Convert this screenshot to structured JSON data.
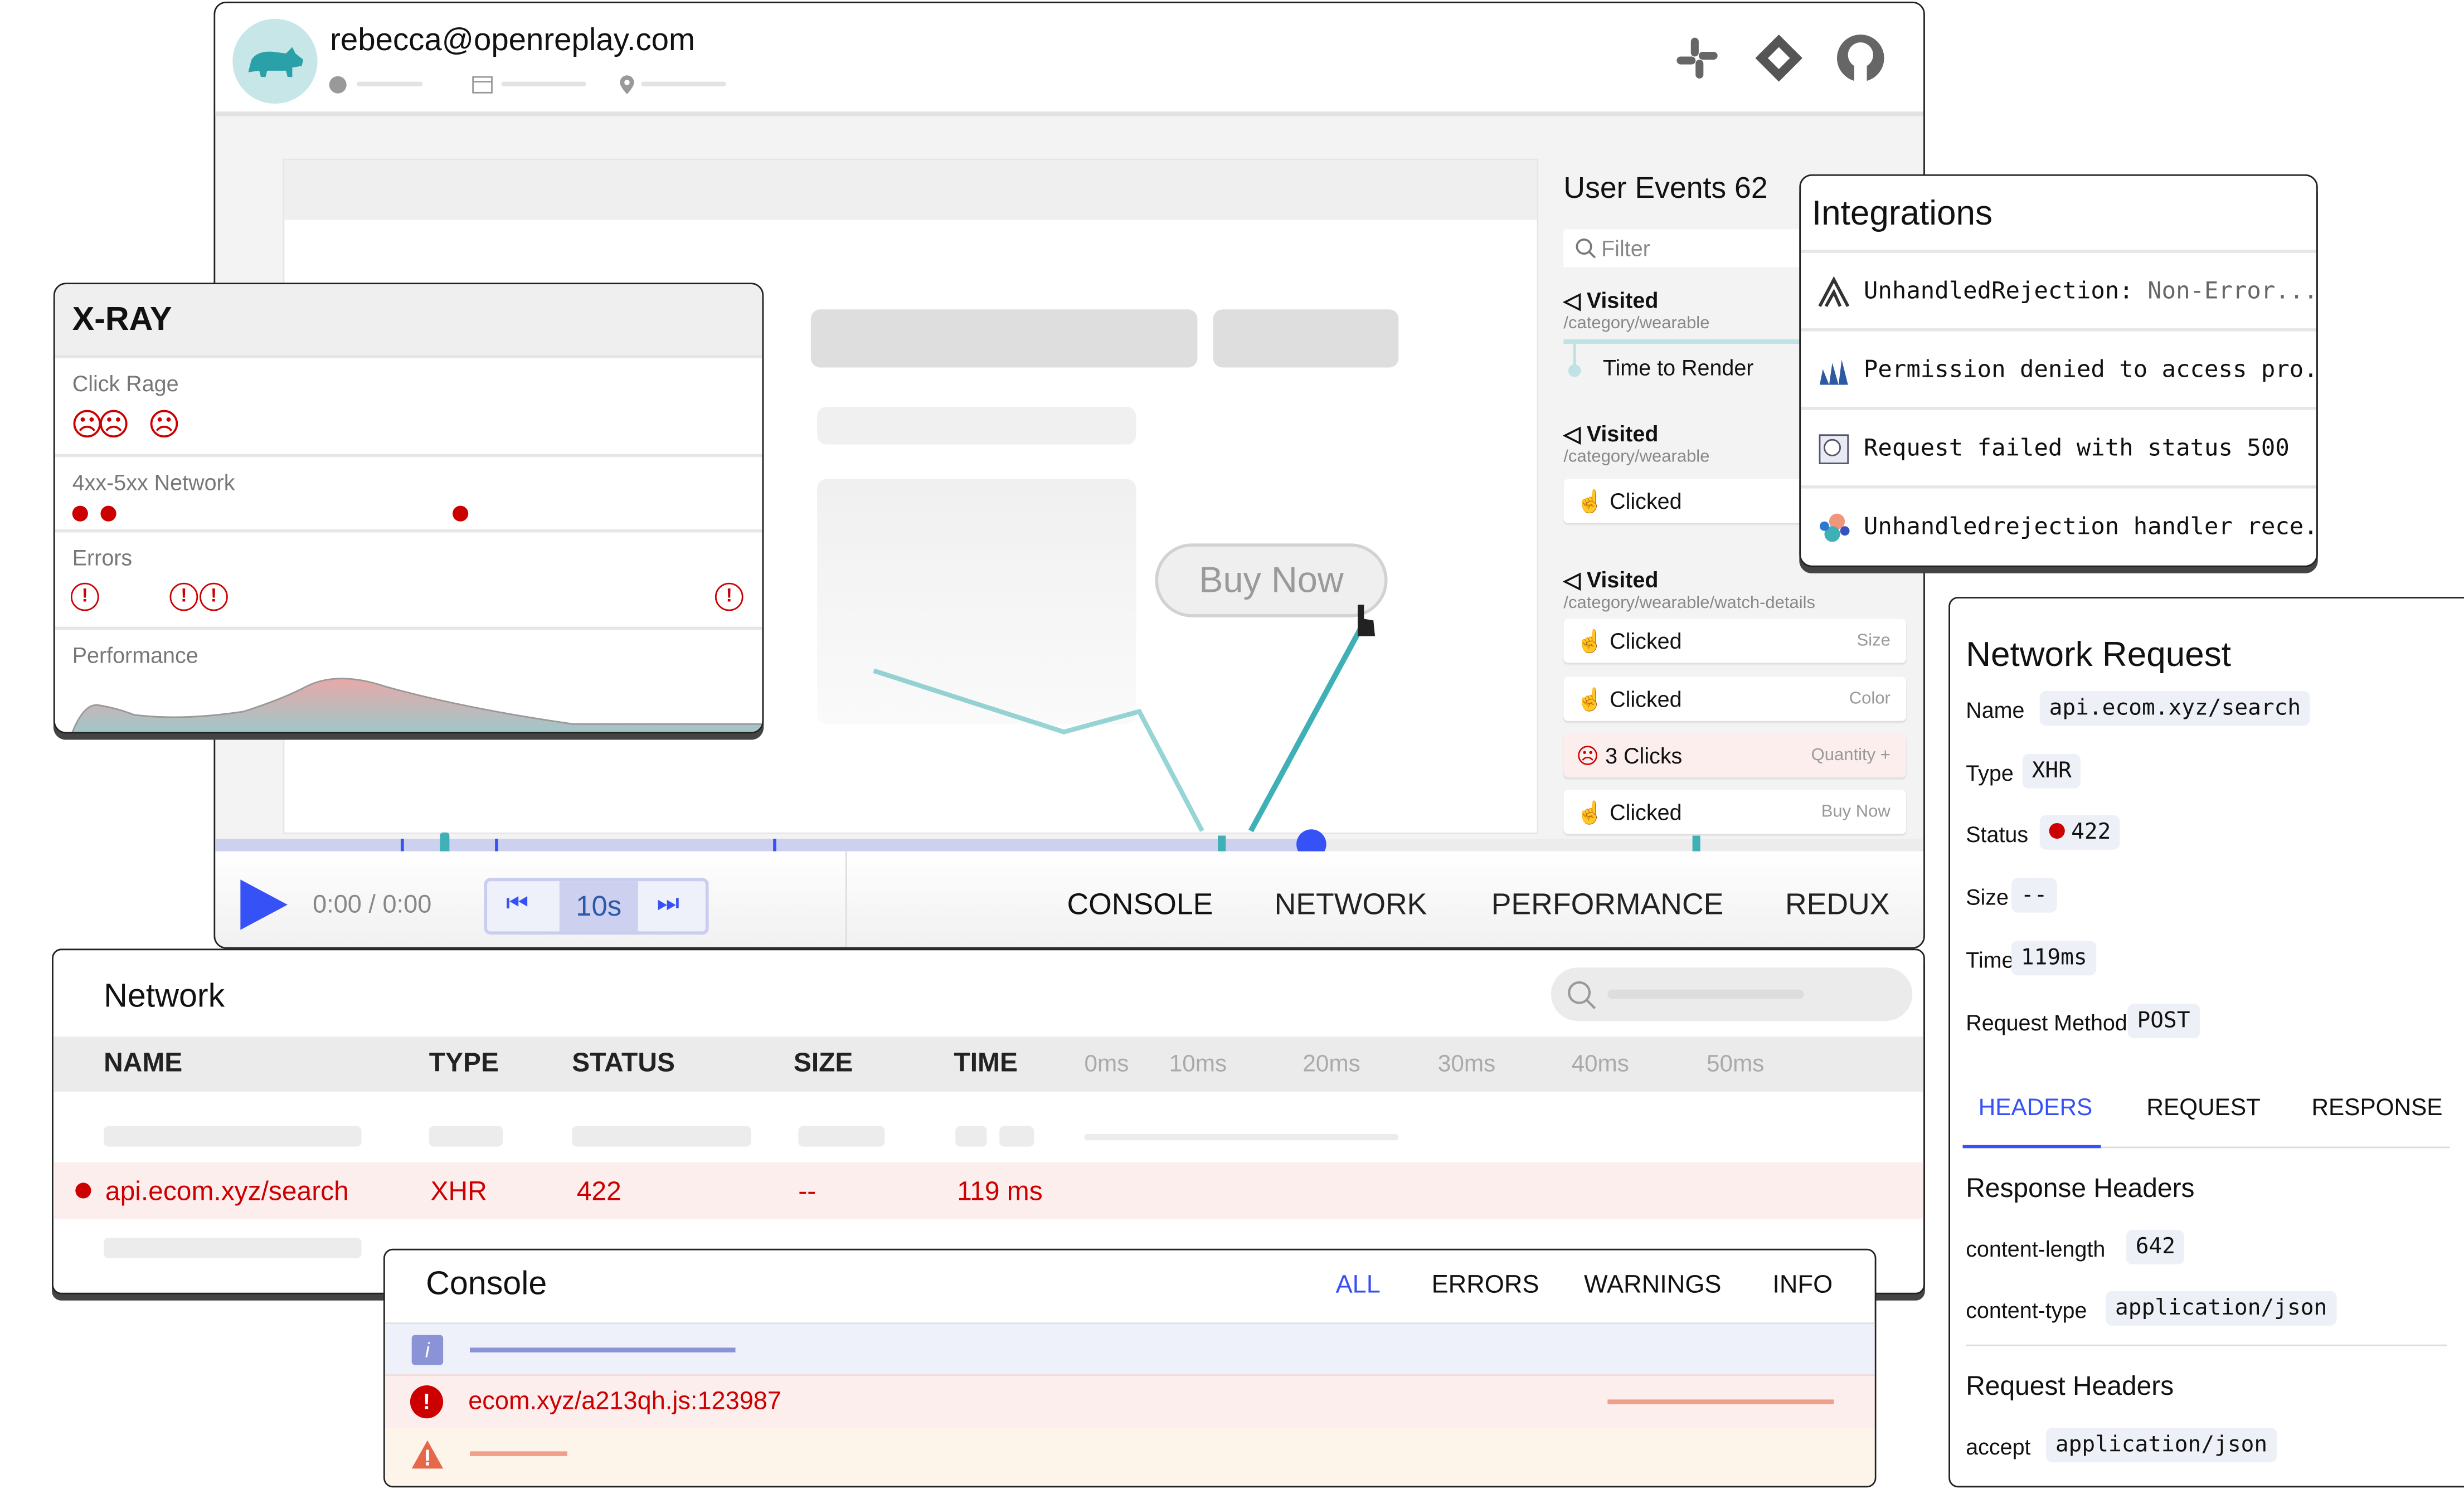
{
  "header": {
    "user_email": "rebecca@openreplay.com",
    "icons": [
      "clock-icon",
      "calendar-icon",
      "location-icon"
    ],
    "integrations_icons": [
      "slack-icon",
      "jira-icon",
      "github-icon"
    ]
  },
  "replay": {
    "buy_now_label": "Buy Now"
  },
  "user_events": {
    "title": "User Events 62",
    "filter_placeholder": "Filter",
    "groups": [
      {
        "type": "Visited",
        "path": "/category/wearable",
        "items": [
          {
            "label": "Time to Render",
            "detail": ""
          }
        ]
      },
      {
        "type": "Visited",
        "path": "/category/wearable",
        "items": [
          {
            "label": "Clicked",
            "detail": ""
          }
        ]
      },
      {
        "type": "Visited",
        "path": "/category/wearable/watch-details",
        "items": [
          {
            "label": "Clicked",
            "detail": "Size"
          },
          {
            "label": "Clicked",
            "detail": "Color"
          },
          {
            "label": "3 Clicks",
            "detail": "Quantity +",
            "rage": true
          },
          {
            "label": "Clicked",
            "detail": "Buy Now"
          }
        ]
      }
    ]
  },
  "player": {
    "time": "0:00 / 0:00",
    "skip_label": "10s",
    "progress_percent": 64,
    "tabs": [
      "CONSOLE",
      "NETWORK",
      "PERFORMANCE",
      "REDUX"
    ]
  },
  "xray": {
    "title": "X-RAY",
    "rows": [
      "Click Rage",
      "4xx-5xx Network",
      "Errors",
      "Performance"
    ]
  },
  "integrations": {
    "title": "Integrations",
    "items": [
      {
        "icon": "sentry-icon",
        "text": "UnhandledRejection:",
        "muted": "Non-Error..."
      },
      {
        "icon": "bugsnag-icon",
        "text": "Permission denied to access pro...",
        "muted": ""
      },
      {
        "icon": "datadog-icon",
        "text": "Request failed with status 500",
        "muted": ""
      },
      {
        "icon": "elastic-icon",
        "text": "Unhandledrejection handler rece..",
        "muted": ""
      }
    ]
  },
  "network_request": {
    "title": "Network Request",
    "fields": [
      {
        "label": "Name",
        "value": "api.ecom.xyz/search"
      },
      {
        "label": "Type",
        "value": "XHR"
      },
      {
        "label": "Status",
        "value": "422"
      },
      {
        "label": "Size",
        "value": "--"
      },
      {
        "label": "Time",
        "value": "119ms"
      },
      {
        "label": "Request Method",
        "value": "POST"
      }
    ],
    "tabs": [
      "HEADERS",
      "REQUEST",
      "RESPONSE"
    ],
    "active_tab": "HEADERS",
    "response_headers_title": "Response Headers",
    "response_headers": [
      {
        "label": "content-length",
        "value": "642"
      },
      {
        "label": "content-type",
        "value": "application/json"
      }
    ],
    "request_headers_title": "Request Headers",
    "request_headers": [
      {
        "label": "accept",
        "value": "application/json"
      }
    ]
  },
  "network": {
    "title": "Network",
    "columns": [
      "NAME",
      "TYPE",
      "STATUS",
      "SIZE",
      "TIME"
    ],
    "timeline_ticks": [
      "0ms",
      "10ms",
      "20ms",
      "30ms",
      "40ms",
      "50ms"
    ],
    "row": {
      "name": "api.ecom.xyz/search",
      "type": "XHR",
      "status": "422",
      "size": "--",
      "time": "119 ms"
    }
  },
  "console": {
    "title": "Console",
    "tabs": [
      "ALL",
      "ERRORS",
      "WARNINGS",
      "INFO"
    ],
    "active_tab": "ALL",
    "error_text": "ecom.xyz/a213qh.js:123987"
  },
  "colors": {
    "accent": "#3651f5",
    "error": "#cc0000",
    "teal": "#3fb0b5",
    "error_bg": "#fdeeee",
    "warn_bg": "#fdf5ea",
    "info_bg": "#eef0fa"
  }
}
